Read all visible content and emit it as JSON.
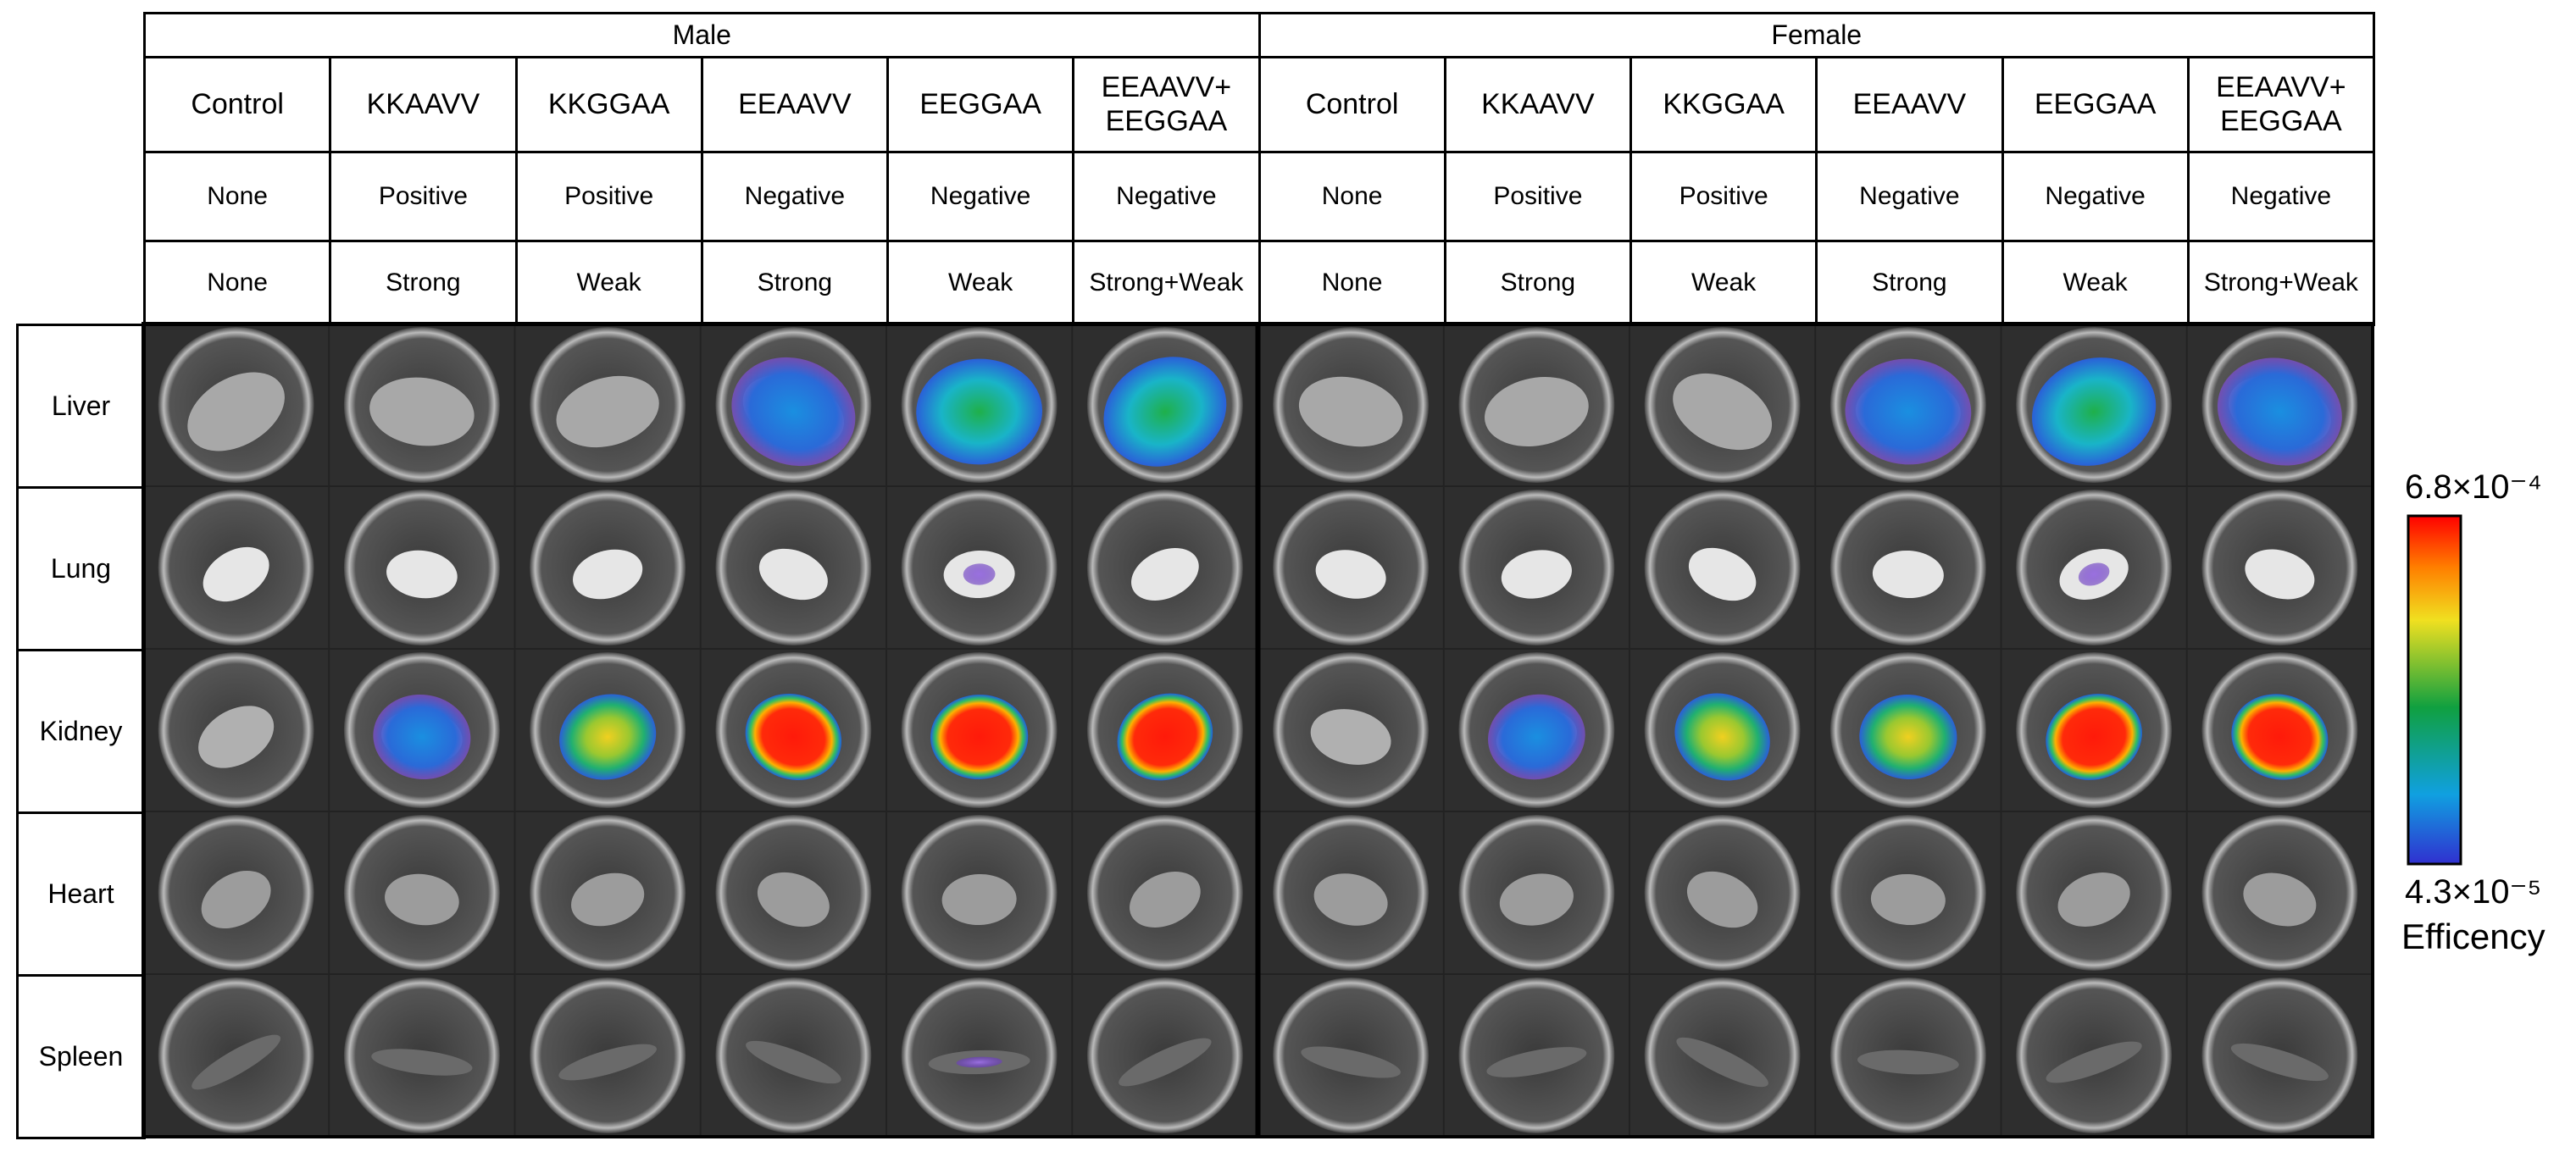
{
  "groups": [
    {
      "label": "Male",
      "columns": [
        {
          "name": "Control",
          "charge": "None",
          "affinity": "None"
        },
        {
          "name": "KKAAVV",
          "charge": "Positive",
          "affinity": "Strong"
        },
        {
          "name": "KKGGAA",
          "charge": "Positive",
          "affinity": "Weak"
        },
        {
          "name": "EEAAVV",
          "charge": "Negative",
          "affinity": "Strong"
        },
        {
          "name": "EEGGAA",
          "charge": "Negative",
          "affinity": "Weak"
        },
        {
          "name": "EEAAVV+\nEEGGAA",
          "charge": "Negative",
          "affinity": "Strong+Weak"
        }
      ]
    },
    {
      "label": "Female",
      "columns": [
        {
          "name": "Control",
          "charge": "None",
          "affinity": "None"
        },
        {
          "name": "KKAAVV",
          "charge": "Positive",
          "affinity": "Strong"
        },
        {
          "name": "KKGGAA",
          "charge": "Positive",
          "affinity": "Weak"
        },
        {
          "name": "EEAAVV",
          "charge": "Negative",
          "affinity": "Strong"
        },
        {
          "name": "EEGGAA",
          "charge": "Negative",
          "affinity": "Weak"
        },
        {
          "name": "EEAAVV+\nEEGGAA",
          "charge": "Negative",
          "affinity": "Strong+Weak"
        }
      ]
    }
  ],
  "organs": [
    "Liver",
    "Lung",
    "Kidney",
    "Heart",
    "Spleen"
  ],
  "colorbar": {
    "max_label": "6.8×10⁻⁴",
    "min_label": "4.3×10⁻⁵",
    "title": "Efficency"
  }
}
